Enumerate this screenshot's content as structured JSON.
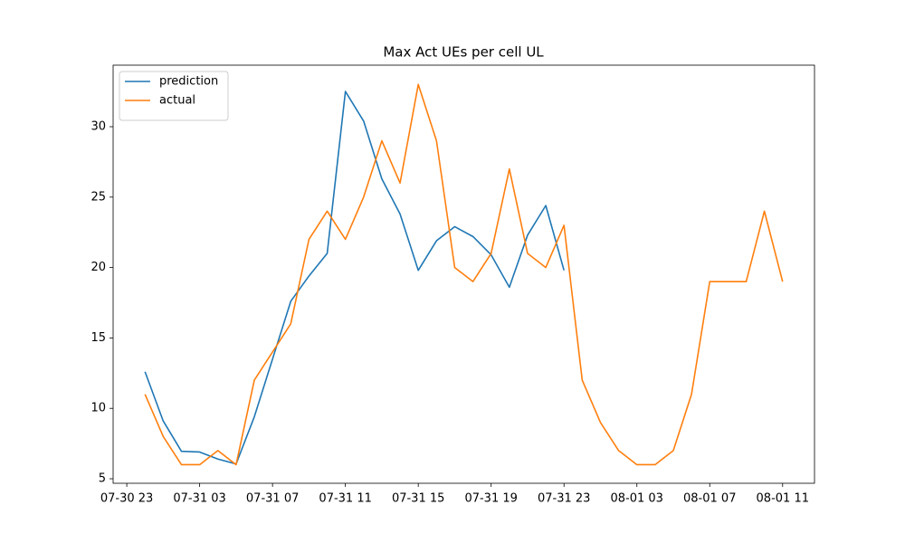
{
  "chart_data": {
    "type": "line",
    "title": "Max Act UEs per cell UL",
    "x": [
      "07-31 00",
      "07-31 01",
      "07-31 02",
      "07-31 03",
      "07-31 04",
      "07-31 05",
      "07-31 06",
      "07-31 07",
      "07-31 08",
      "07-31 09",
      "07-31 10",
      "07-31 11",
      "07-31 12",
      "07-31 13",
      "07-31 14",
      "07-31 15",
      "07-31 16",
      "07-31 17",
      "07-31 18",
      "07-31 19",
      "07-31 20",
      "07-31 21",
      "07-31 22",
      "07-31 23",
      "08-01 00",
      "08-01 01",
      "08-01 02",
      "08-01 03",
      "08-01 04",
      "08-01 05",
      "08-01 06",
      "08-01 07",
      "08-01 08",
      "08-01 09",
      "08-01 10",
      "08-01 11"
    ],
    "series": [
      {
        "name": "prediction",
        "color": "#1f77b4",
        "values": [
          12.6,
          9.1,
          6.95,
          6.9,
          6.4,
          6.05,
          9.4,
          13.5,
          17.6,
          19.4,
          21.0,
          32.5,
          30.4,
          26.3,
          23.8,
          19.8,
          21.9,
          22.9,
          22.2,
          20.9,
          18.6,
          22.3,
          24.4,
          19.8,
          null,
          null,
          null,
          null,
          null,
          null,
          null,
          null,
          null,
          null,
          null,
          null
        ]
      },
      {
        "name": "actual",
        "color": "#ff7f0e",
        "values": [
          11,
          8,
          6,
          6,
          7,
          6,
          12,
          14,
          16,
          22,
          24,
          22,
          25,
          29,
          26,
          33,
          29,
          20,
          19,
          21,
          27,
          21,
          20,
          23,
          12,
          9,
          7,
          6,
          6,
          7,
          11,
          19,
          19,
          19,
          24,
          19
        ]
      }
    ],
    "xlim": [
      "07-30 22:15",
      "08-01 12:45"
    ],
    "xticks": [
      "07-30 23",
      "07-31 03",
      "07-31 07",
      "07-31 11",
      "07-31 15",
      "07-31 19",
      "07-31 23",
      "08-01 03",
      "08-01 07",
      "08-01 11"
    ],
    "ylim": [
      4.68,
      34.37
    ],
    "yticks": [
      5,
      10,
      15,
      20,
      25,
      30
    ],
    "grid": false,
    "legend": "upper left"
  }
}
